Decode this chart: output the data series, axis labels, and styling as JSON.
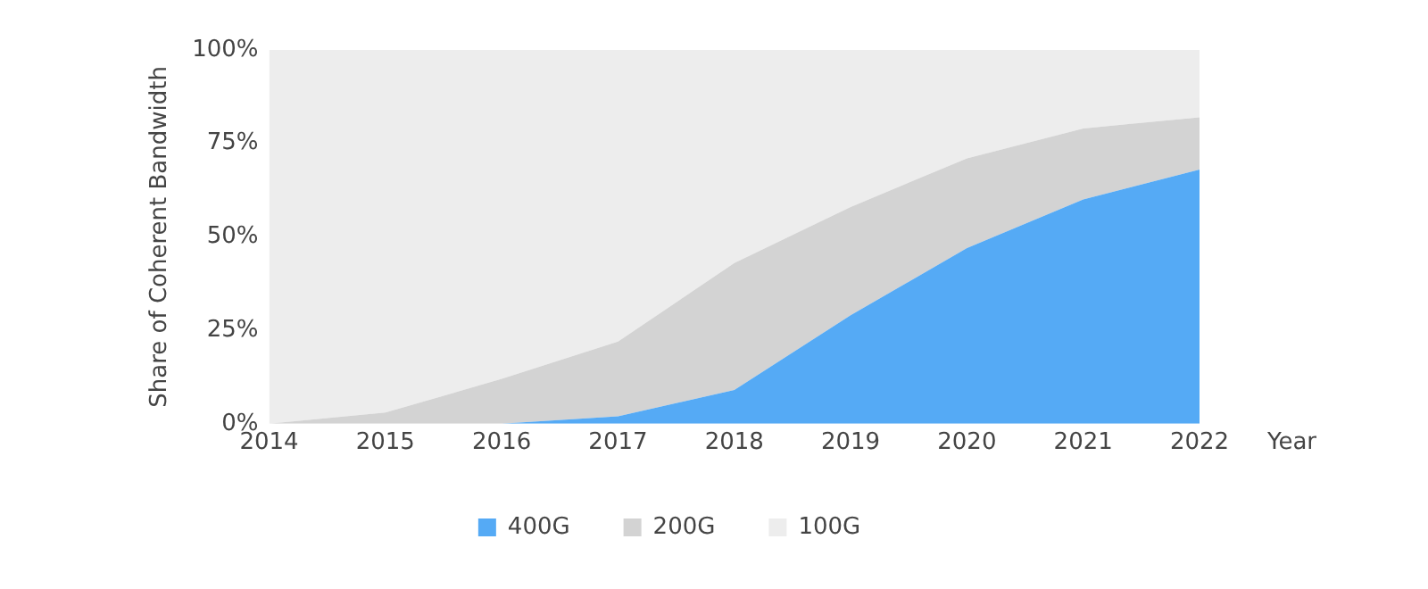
{
  "chart_data": {
    "type": "area",
    "stacked": true,
    "xlabel": "Year",
    "ylabel": "Share of Coherent Bandwidth",
    "x": [
      2014,
      2015,
      2016,
      2017,
      2018,
      2019,
      2020,
      2021,
      2022
    ],
    "xlim": [
      2014,
      2022
    ],
    "xticks": [
      2014,
      2015,
      2016,
      2017,
      2018,
      2019,
      2020,
      2021,
      2022
    ],
    "ylim": [
      0,
      100
    ],
    "yticks": [
      {
        "value": 0,
        "label": "0%"
      },
      {
        "value": 25,
        "label": "25%"
      },
      {
        "value": 50,
        "label": "50%"
      },
      {
        "value": 75,
        "label": "75%"
      },
      {
        "value": 100,
        "label": "100%"
      }
    ],
    "series": [
      {
        "name": "400G",
        "color": "#55aaf5",
        "values": [
          0,
          0,
          0,
          2,
          9,
          29,
          47,
          60,
          68
        ]
      },
      {
        "name": "200G",
        "color": "#d3d3d3",
        "values": [
          0,
          3,
          12,
          20,
          34,
          29,
          24,
          19,
          14
        ]
      },
      {
        "name": "100G",
        "color": "#ededed",
        "values": [
          100,
          97,
          88,
          78,
          57,
          42,
          29,
          21,
          18
        ]
      }
    ],
    "grid": false,
    "legend": "bottom"
  }
}
